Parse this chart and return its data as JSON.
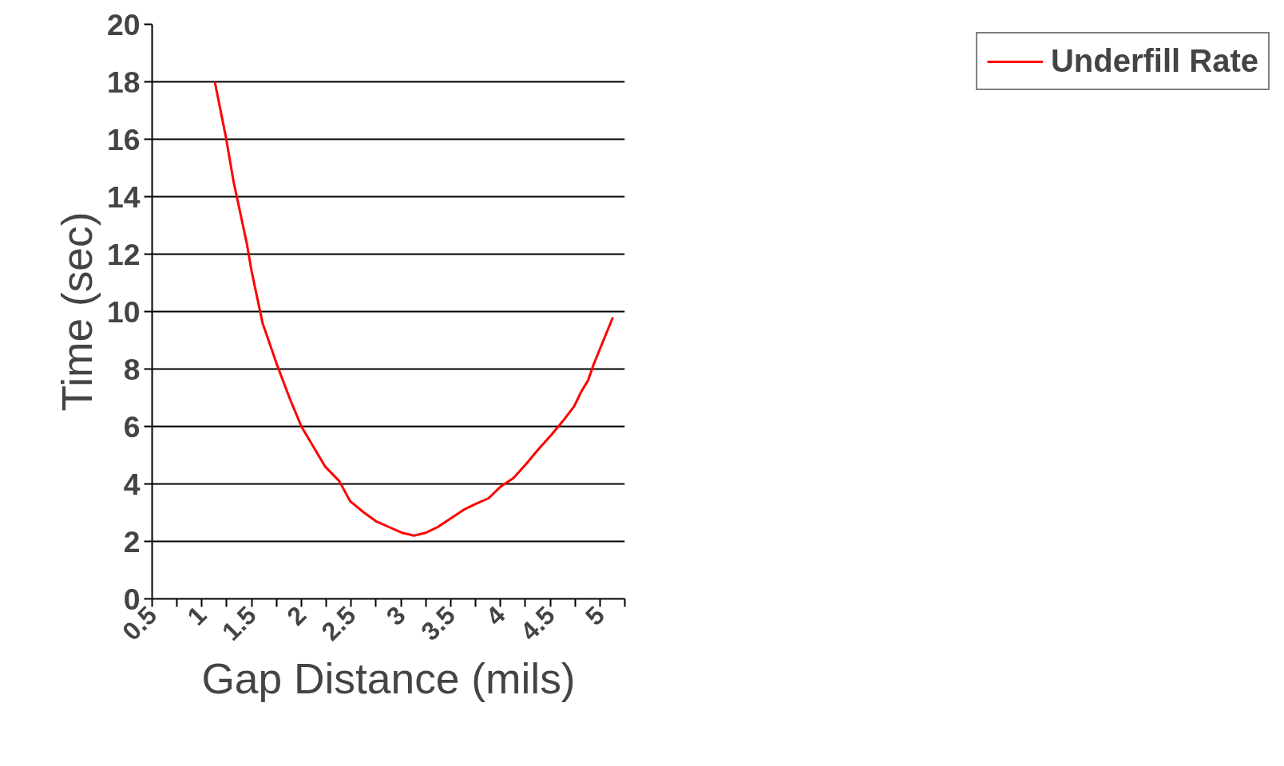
{
  "chart_data": {
    "type": "line",
    "xlabel": "Gap Distance (mils)",
    "ylabel": "Time (sec)",
    "xlim": [
      0.5,
      5.25
    ],
    "xticks": [
      0.5,
      {
        "value": 0.75,
        "label": null
      },
      1,
      {
        "value": 1.25,
        "label": null
      },
      1.5,
      {
        "value": 1.75,
        "label": null
      },
      2,
      {
        "value": 2.25,
        "label": null
      },
      2.5,
      {
        "value": 2.75,
        "label": null
      },
      3,
      {
        "value": 3.25,
        "label": null
      },
      3.5,
      {
        "value": 3.75,
        "label": null
      },
      4,
      {
        "value": 4.25,
        "label": null
      },
      4.5,
      {
        "value": 4.75,
        "label": null
      },
      5,
      {
        "value": 5.25,
        "label": null
      }
    ],
    "ylim": [
      0,
      20
    ],
    "yticks": [
      0,
      2,
      4,
      6,
      8,
      10,
      12,
      14,
      16,
      18,
      20
    ],
    "grid": "y",
    "legend": "top right",
    "marker": "none",
    "line_style": "solid",
    "series": [
      {
        "name": "Underfill Rate",
        "color": "#ff0000",
        "x": [
          1.13,
          1.24,
          1.32,
          1.45,
          1.5,
          1.61,
          1.69,
          1.76,
          1.88,
          2.0,
          2.12,
          2.24,
          2.38,
          2.49,
          2.63,
          2.75,
          2.88,
          3.01,
          3.13,
          3.25,
          3.37,
          3.5,
          3.63,
          3.75,
          3.88,
          4.0,
          4.13,
          4.26,
          4.38,
          4.51,
          4.63,
          4.74,
          4.81,
          4.88,
          4.93,
          5.0,
          5.13
        ],
        "values": [
          18.0,
          16.1,
          14.5,
          12.4,
          11.4,
          9.6,
          8.8,
          8.1,
          7.0,
          6.0,
          5.3,
          4.6,
          4.1,
          3.4,
          3.0,
          2.7,
          2.5,
          2.3,
          2.2,
          2.3,
          2.5,
          2.8,
          3.1,
          3.3,
          3.5,
          3.9,
          4.2,
          4.7,
          5.2,
          5.7,
          6.2,
          6.7,
          7.2,
          7.6,
          8.1,
          8.7,
          9.8
        ]
      }
    ]
  }
}
